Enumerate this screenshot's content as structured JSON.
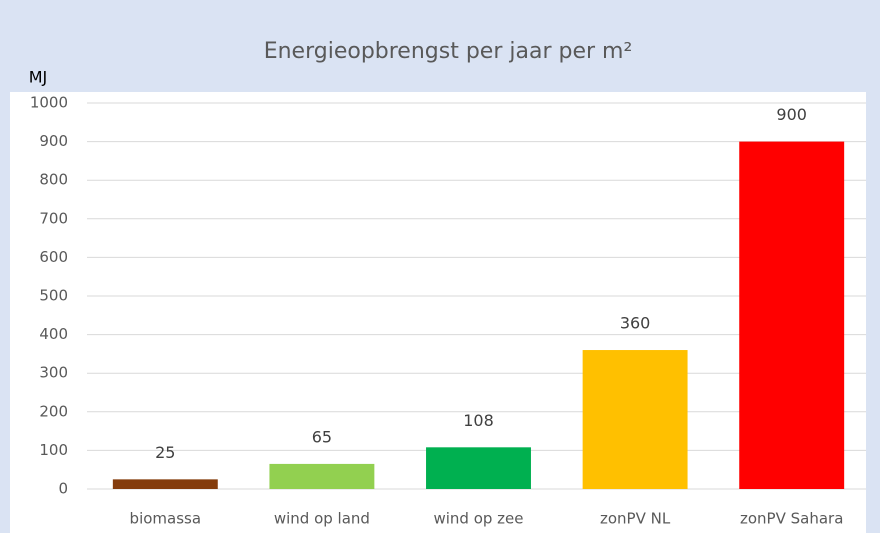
{
  "chart_data": {
    "type": "bar",
    "title": "Energieopbrengst per jaar per m²",
    "y_label": "MJ",
    "categories": [
      "biomassa",
      "wind op land",
      "wind op zee",
      "zonPV NL",
      "zonPV Sahara"
    ],
    "values": [
      25,
      65,
      108,
      360,
      900
    ],
    "colors": [
      "#843c0c",
      "#92d050",
      "#00b050",
      "#ffc000",
      "#ff0000"
    ],
    "ylim": [
      0,
      1000
    ],
    "yticks": [
      0,
      100,
      200,
      300,
      400,
      500,
      600,
      700,
      800,
      900,
      1000
    ],
    "grid": true
  }
}
